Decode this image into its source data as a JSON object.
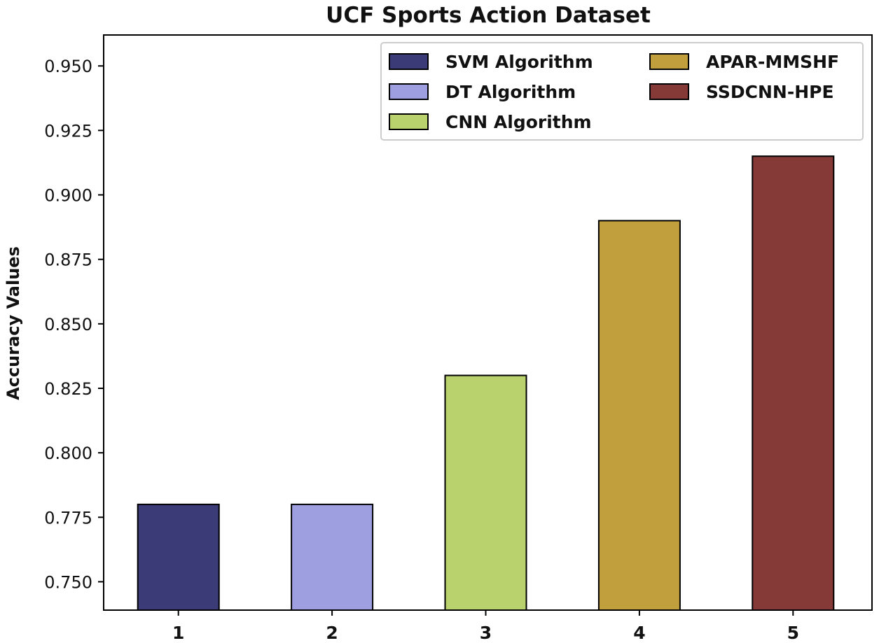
{
  "chart_data": {
    "type": "bar",
    "title": "UCF Sports Action Dataset",
    "xlabel": "",
    "ylabel": "Accuracy Values",
    "categories": [
      "1",
      "2",
      "3",
      "4",
      "5"
    ],
    "series": [
      {
        "name": "SVM Algorithm",
        "category": "1",
        "value": 0.78,
        "color": "#3b3b78"
      },
      {
        "name": "DT Algorithm",
        "category": "2",
        "value": 0.78,
        "color": "#9e9fe0"
      },
      {
        "name": "CNN Algorithm",
        "category": "3",
        "value": 0.83,
        "color": "#b9d26e"
      },
      {
        "name": "APAR-MMSHF",
        "category": "4",
        "value": 0.89,
        "color": "#c19f3c"
      },
      {
        "name": "SSDCNN-HPE",
        "category": "5",
        "value": 0.915,
        "color": "#853a38"
      }
    ],
    "ylim": [
      0.739,
      0.962
    ],
    "yticks": [
      "0.750",
      "0.775",
      "0.800",
      "0.825",
      "0.850",
      "0.875",
      "0.900",
      "0.925",
      "0.950"
    ],
    "grid": false,
    "legend_position": "top-right",
    "legend_columns": 2
  }
}
